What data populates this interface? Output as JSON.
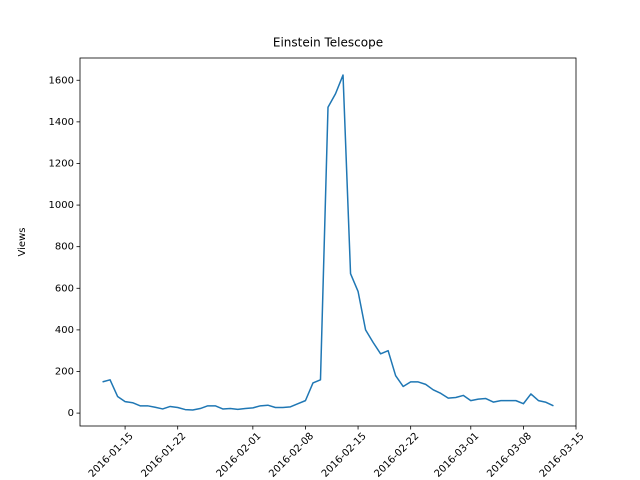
{
  "chart_data": {
    "type": "line",
    "title": "Einstein Telescope",
    "y_label": "Views",
    "x": [
      "2016-01-12",
      "2016-01-13",
      "2016-01-14",
      "2016-01-15",
      "2016-01-16",
      "2016-01-17",
      "2016-01-18",
      "2016-01-19",
      "2016-01-20",
      "2016-01-21",
      "2016-01-22",
      "2016-01-23",
      "2016-01-24",
      "2016-01-25",
      "2016-01-26",
      "2016-01-27",
      "2016-01-28",
      "2016-01-29",
      "2016-01-30",
      "2016-01-31",
      "2016-02-01",
      "2016-02-02",
      "2016-02-03",
      "2016-02-04",
      "2016-02-05",
      "2016-02-06",
      "2016-02-07",
      "2016-02-08",
      "2016-02-09",
      "2016-02-10",
      "2016-02-11",
      "2016-02-12",
      "2016-02-13",
      "2016-02-14",
      "2016-02-15",
      "2016-02-16",
      "2016-02-17",
      "2016-02-18",
      "2016-02-19",
      "2016-02-20",
      "2016-02-21",
      "2016-02-22",
      "2016-02-23",
      "2016-02-24",
      "2016-02-25",
      "2016-02-26",
      "2016-02-27",
      "2016-02-28",
      "2016-02-29",
      "2016-03-01",
      "2016-03-02",
      "2016-03-03",
      "2016-03-04",
      "2016-03-05",
      "2016-03-06",
      "2016-03-07",
      "2016-03-08",
      "2016-03-09",
      "2016-03-10",
      "2016-03-11",
      "2016-03-12"
    ],
    "series": [
      {
        "name": "Views",
        "color": "#1f77b4",
        "values": [
          150,
          160,
          80,
          55,
          50,
          35,
          35,
          28,
          20,
          32,
          27,
          17,
          15,
          22,
          35,
          35,
          20,
          22,
          18,
          22,
          25,
          35,
          38,
          27,
          27,
          30,
          45,
          60,
          145,
          160,
          1470,
          1535,
          1625,
          670,
          585,
          400,
          340,
          285,
          300,
          180,
          128,
          150,
          150,
          138,
          112,
          95,
          72,
          75,
          85,
          60,
          67,
          70,
          53,
          60,
          60,
          60,
          45,
          92,
          60,
          52,
          35
        ]
      }
    ],
    "xlim": [
      "2016-01-09",
      "2016-03-15"
    ],
    "xticks": [
      "2016-01-15",
      "2016-01-22",
      "2016-02-01",
      "2016-02-08",
      "2016-02-15",
      "2016-02-22",
      "2016-03-01",
      "2016-03-08",
      "2016-03-15"
    ],
    "ylim": [
      -62,
      1707
    ],
    "yticks": [
      0,
      200,
      400,
      600,
      800,
      1000,
      1200,
      1400,
      1600
    ],
    "grid": false
  }
}
